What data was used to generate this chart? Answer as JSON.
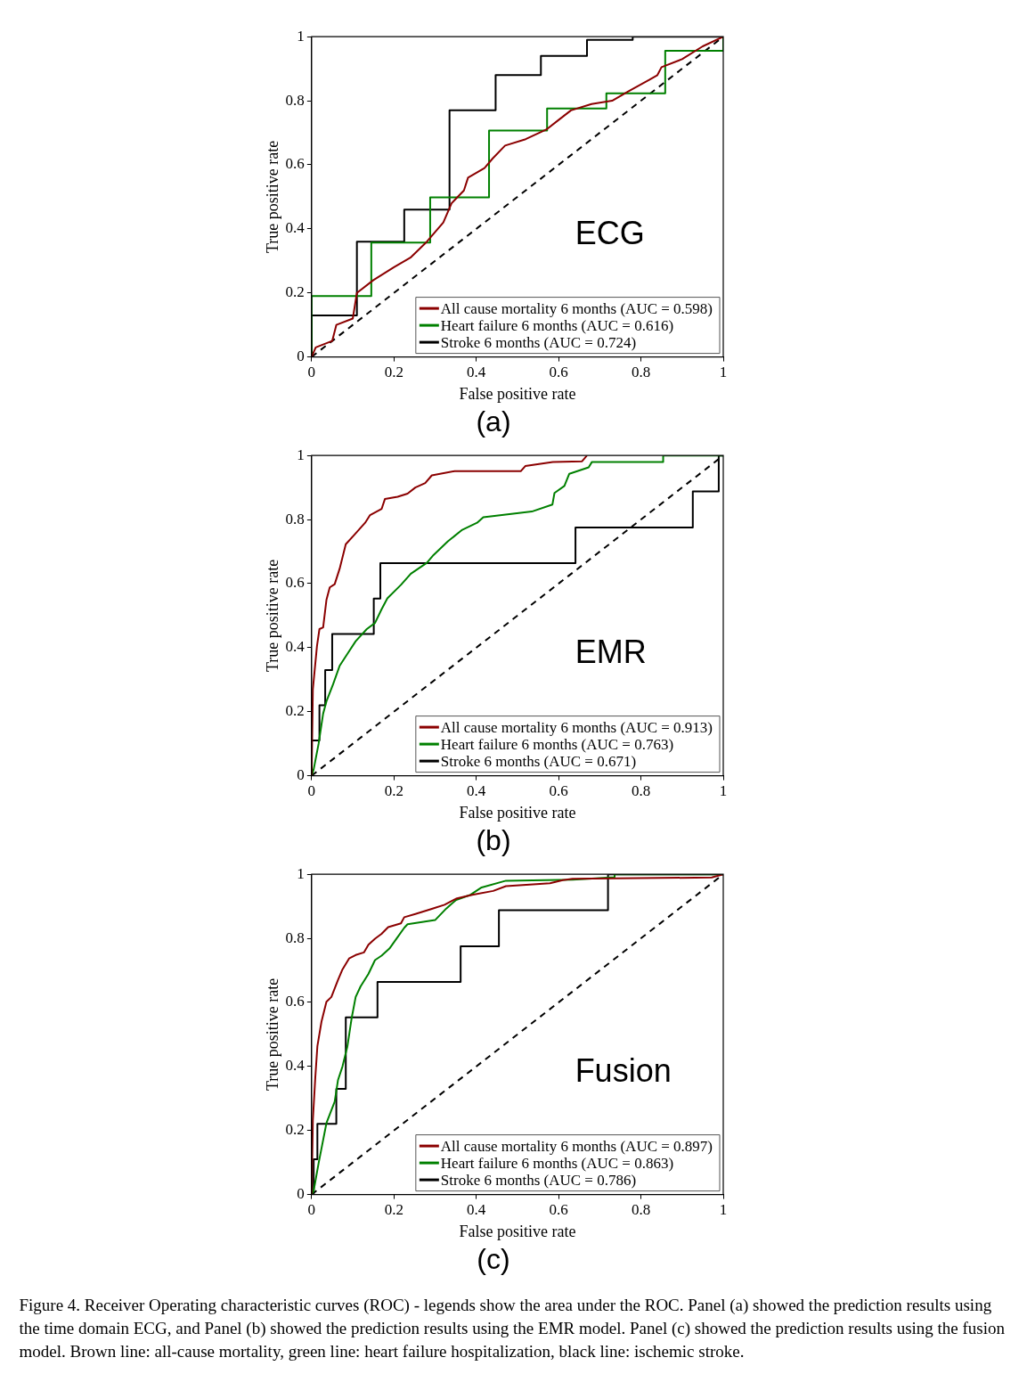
{
  "chart_data": [
    {
      "type": "line",
      "title": "(a)",
      "xlabel": "False positive rate",
      "ylabel": "True positive rate",
      "xlim": [
        0,
        1
      ],
      "ylim": [
        0,
        1
      ],
      "xticks": [
        0,
        0.2,
        0.4,
        0.6,
        0.8,
        1
      ],
      "yticks": [
        0,
        0.2,
        0.4,
        0.6,
        0.8,
        1
      ],
      "legend": "bottom right",
      "marker": "none",
      "annotations": [
        "ECG"
      ],
      "series": [
        {
          "name": "All cause mortality 6 months (AUC = 0.598)",
          "color": "#8b0000",
          "x": [
            0,
            0.01,
            0.05,
            0.06,
            0.1,
            0.11,
            0.15,
            0.2,
            0.24,
            0.28,
            0.3,
            0.32,
            0.34,
            0.37,
            0.38,
            0.42,
            0.44,
            0.47,
            0.52,
            0.57,
            0.6,
            0.63,
            0.68,
            0.73,
            0.77,
            0.82,
            0.84,
            0.85,
            0.9,
            0.95,
            1
          ],
          "values": [
            0,
            0.03,
            0.05,
            0.1,
            0.12,
            0.2,
            0.24,
            0.28,
            0.31,
            0.36,
            0.39,
            0.42,
            0.48,
            0.52,
            0.56,
            0.59,
            0.62,
            0.66,
            0.68,
            0.71,
            0.74,
            0.77,
            0.79,
            0.8,
            0.83,
            0.865,
            0.88,
            0.905,
            0.93,
            0.97,
            1
          ]
        },
        {
          "name": "Heart failure 6 months (AUC = 0.616)",
          "color": "#008000",
          "x": [
            0,
            0,
            0.145,
            0.145,
            0.288,
            0.288,
            0.431,
            0.431,
            0.572,
            0.572,
            0.716,
            0.716,
            0.859,
            0.859,
            1,
            1
          ],
          "values": [
            0,
            0.19,
            0.19,
            0.357,
            0.357,
            0.498,
            0.498,
            0.707,
            0.707,
            0.776,
            0.776,
            0.823,
            0.823,
            0.956,
            0.956,
            1
          ]
        },
        {
          "name": "Stroke 6 months (AUC = 0.724)",
          "color": "#000000",
          "x": [
            0,
            0,
            0.11,
            0.11,
            0.225,
            0.225,
            0.335,
            0.335,
            0.447,
            0.447,
            0.557,
            0.557,
            0.669,
            0.669,
            0.78,
            0.78,
            1
          ],
          "values": [
            0,
            0.13,
            0.13,
            0.36,
            0.36,
            0.46,
            0.46,
            0.77,
            0.77,
            0.88,
            0.88,
            0.94,
            0.94,
            0.99,
            0.99,
            1,
            1
          ]
        },
        {
          "color": "#000000",
          "line_style": "dashed",
          "x": [
            0,
            1
          ],
          "values": [
            0,
            1
          ]
        }
      ]
    },
    {
      "type": "line",
      "title": "(b)",
      "xlabel": "False positive rate",
      "ylabel": "True positive rate",
      "xlim": [
        0,
        1
      ],
      "ylim": [
        0,
        1
      ],
      "xticks": [
        0,
        0.2,
        0.4,
        0.6,
        0.8,
        1
      ],
      "yticks": [
        0,
        0.2,
        0.4,
        0.6,
        0.8,
        1
      ],
      "legend": "bottom right",
      "marker": "none",
      "annotations": [
        "EMR"
      ],
      "series": [
        {
          "name": "All cause mortality 6 months (AUC = 0.913)",
          "color": "#8b0000",
          "x": [
            0,
            0.003,
            0.013,
            0.019,
            0.028,
            0.036,
            0.044,
            0.056,
            0.068,
            0.083,
            0.103,
            0.13,
            0.142,
            0.17,
            0.178,
            0.209,
            0.233,
            0.252,
            0.276,
            0.292,
            0.347,
            0.508,
            0.519,
            0.586,
            0.657,
            0.669
          ],
          "values": [
            0,
            0.27,
            0.405,
            0.458,
            0.463,
            0.549,
            0.588,
            0.598,
            0.646,
            0.723,
            0.751,
            0.79,
            0.814,
            0.833,
            0.864,
            0.871,
            0.881,
            0.9,
            0.914,
            0.938,
            0.951,
            0.951,
            0.967,
            0.98,
            0.982,
            1
          ]
        },
        {
          "name": "Heart failure 6 months (AUC = 0.763)",
          "color": "#008000",
          "x": [
            0,
            0.005,
            0.017,
            0.028,
            0.036,
            0.052,
            0.068,
            0.087,
            0.107,
            0.134,
            0.154,
            0.17,
            0.184,
            0.217,
            0.241,
            0.28,
            0.296,
            0.331,
            0.366,
            0.402,
            0.417,
            0.535,
            0.585,
            0.59,
            0.614,
            0.626,
            0.673,
            0.681,
            0.854,
            0.854,
            1
          ],
          "values": [
            0,
            0.02,
            0.1,
            0.194,
            0.232,
            0.285,
            0.343,
            0.381,
            0.42,
            0.458,
            0.477,
            0.52,
            0.554,
            0.596,
            0.631,
            0.665,
            0.689,
            0.732,
            0.768,
            0.79,
            0.807,
            0.825,
            0.847,
            0.883,
            0.905,
            0.943,
            0.963,
            0.98,
            0.98,
            1,
            1
          ]
        },
        {
          "name": "Stroke 6 months (AUC = 0.671)",
          "color": "#000000",
          "x": [
            0,
            0,
            0.019,
            0.019,
            0.033,
            0.033,
            0.05,
            0.05,
            0.151,
            0.151,
            0.167,
            0.167,
            0.641,
            0.641,
            0.926,
            0.926,
            0.989,
            0.989,
            1
          ],
          "values": [
            0,
            0.11,
            0.11,
            0.22,
            0.22,
            0.33,
            0.33,
            0.443,
            0.443,
            0.553,
            0.553,
            0.664,
            0.664,
            0.775,
            0.775,
            0.888,
            0.888,
            1,
            1
          ]
        },
        {
          "color": "#000000",
          "line_style": "dashed",
          "x": [
            0,
            1
          ],
          "values": [
            0,
            1
          ]
        }
      ]
    },
    {
      "type": "line",
      "title": "(c)",
      "xlabel": "False positive rate",
      "ylabel": "True positive rate",
      "xlim": [
        0,
        1
      ],
      "ylim": [
        0,
        1
      ],
      "xticks": [
        0,
        0.2,
        0.4,
        0.6,
        0.8,
        1
      ],
      "yticks": [
        0,
        0.2,
        0.4,
        0.6,
        0.8,
        1
      ],
      "legend": "bottom right",
      "marker": "none",
      "annotations": [
        "Fusion",
        "Figure 4. Receiver Operating characteristic curves (ROC) - legends show the area under the ROC. Panel (a) showed the prediction results using the time domain ECG, and Panel (b) showed the prediction results using the EMR model. Panel (c) showed the prediction results using the fusion model. Brown line: all-cause mortality, green line: heart failure hospitalization, black line: ischemic stroke."
      ],
      "series": [
        {
          "name": "All cause mortality 6 months (AUC = 0.897)",
          "color": "#8b0000",
          "x": [
            0,
            0.003,
            0.009,
            0.014,
            0.024,
            0.036,
            0.048,
            0.064,
            0.075,
            0.091,
            0.107,
            0.127,
            0.138,
            0.154,
            0.17,
            0.186,
            0.217,
            0.225,
            0.252,
            0.292,
            0.323,
            0.351,
            0.39,
            0.441,
            0.472,
            0.579,
            0.61,
            0.634,
            0.972,
            1
          ],
          "values": [
            0,
            0.232,
            0.367,
            0.463,
            0.54,
            0.602,
            0.617,
            0.67,
            0.703,
            0.737,
            0.748,
            0.756,
            0.78,
            0.799,
            0.814,
            0.835,
            0.847,
            0.866,
            0.876,
            0.892,
            0.905,
            0.924,
            0.936,
            0.948,
            0.963,
            0.972,
            0.982,
            0.986,
            0.99,
            1
          ]
        },
        {
          "name": "Heart failure 6 months (AUC = 0.863)",
          "color": "#008000",
          "x": [
            0,
            0.005,
            0.017,
            0.036,
            0.056,
            0.064,
            0.075,
            0.087,
            0.097,
            0.107,
            0.119,
            0.138,
            0.154,
            0.17,
            0.189,
            0.209,
            0.225,
            0.233,
            0.3,
            0.327,
            0.351,
            0.386,
            0.413,
            0.472,
            0.634,
            0.736,
            0.736,
            1
          ],
          "values": [
            0,
            0.012,
            0.098,
            0.223,
            0.29,
            0.357,
            0.4,
            0.463,
            0.549,
            0.617,
            0.65,
            0.689,
            0.732,
            0.746,
            0.768,
            0.804,
            0.833,
            0.844,
            0.857,
            0.893,
            0.92,
            0.936,
            0.959,
            0.98,
            0.983,
            0.991,
            1,
            1
          ]
        },
        {
          "name": "Stroke 6 months (AUC = 0.786)",
          "color": "#000000",
          "x": [
            0,
            0.005,
            0.005,
            0.014,
            0.014,
            0.06,
            0.06,
            0.083,
            0.083,
            0.16,
            0.16,
            0.362,
            0.362,
            0.455,
            0.455,
            0.72,
            0.72,
            1
          ],
          "values": [
            0,
            0,
            0.11,
            0.11,
            0.221,
            0.221,
            0.33,
            0.33,
            0.553,
            0.553,
            0.664,
            0.664,
            0.775,
            0.775,
            0.888,
            0.888,
            1,
            1
          ]
        },
        {
          "color": "#000000",
          "line_style": "dashed",
          "x": [
            0,
            1
          ],
          "values": [
            0,
            1
          ]
        }
      ]
    }
  ]
}
